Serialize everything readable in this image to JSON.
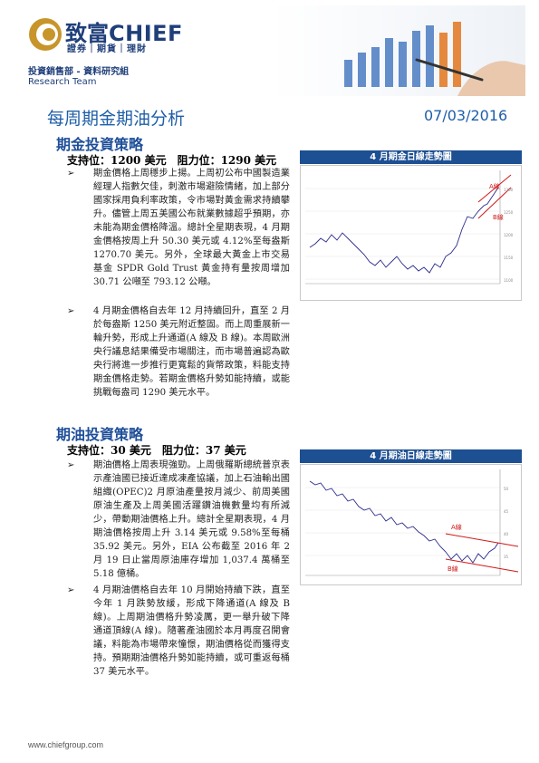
{
  "header": {
    "brand_cn": "致富",
    "brand_en": "CHIEF",
    "tagline": "證券｜期貨｜理財",
    "dept": "投資銷售部 - 資料研究組",
    "team": "Research Team"
  },
  "report": {
    "title": "每周期金期油分析",
    "date": "07/03/2016"
  },
  "gold": {
    "heading": "期金投資策略",
    "levels": "支持位：1200 美元　阻力位：1290 美元",
    "para1": "期金價格上周穩步上揚。上周初公布中國製造業經理人指數欠佳，刺激市場避險情緒，加上部分國家採用負利率政策，令市場對黃金需求持續攀升。儘管上周五美國公布就業數據超乎預期，亦未能為期金價格降溫。總計全星期表現，4 月期金價格按周上升 50.30 美元或 4.12%至每盎斯 1270.70 美元。另外，全球最大黃金上市交易基金 SPDR Gold Trust 黃金持有量按周增加 30.71 公噸至 793.12 公噸。",
    "para2": "4 月期金價格自去年 12 月持續回升，直至 2 月於每盎斯 1250 美元附近整固。而上周重展新一輪升勢，形成上升通道(A 線及 B 線)。本周歐洲央行議息結果備受市場關注，而市場普遍認為歐央行將進一步推行更寬鬆的貨幣政策，料能支持期金價格走勢。若期金價格升勢如能持續，或能挑戰每盎司 1290 美元水平。",
    "chart_title": "4 月期金日線走勢圖",
    "chart_labels": {
      "a": "A線",
      "b": "B線"
    }
  },
  "oil": {
    "heading": "期油投資策略",
    "levels": "支持位：30 美元　阻力位：37 美元",
    "para1": "期油價格上周表現強勁。上周俄羅斯總統普京表示產油國已接近達成凍產協議，加上石油輸出國組織(OPEC)2 月原油產量按月減少、前周美國原油生產及上周美國活躍鑽油機數量均有所減少，帶動期油價格上升。總計全星期表現，4 月期油價格按周上升 3.14 美元或 9.58%至每桶 35.92 美元。另外，EIA 公布截至 2016 年 2 月 19 日止當周原油庫存增加 1,037.4 萬桶至 5.18 億桶。",
    "para2": "4 月期油價格自去年 10 月開始持續下跌，直至今年 1 月跌勢放緩，形成下降通道(A 線及 B 線)。上周期油價格升勢凌厲，更一舉升破下降通道頂線(A 線)。隨著產油國於本月再度召開會議，料能為市場帶來憧憬，期油價格從而獲得支持。預期期油價格升勢如能持續，或可重返每桶 37 美元水平。",
    "chart_title": "4 月期油日線走勢圖",
    "chart_labels": {
      "a": "A線",
      "b": "B線"
    }
  },
  "footer": {
    "url": "www.chiefgroup.com"
  }
}
